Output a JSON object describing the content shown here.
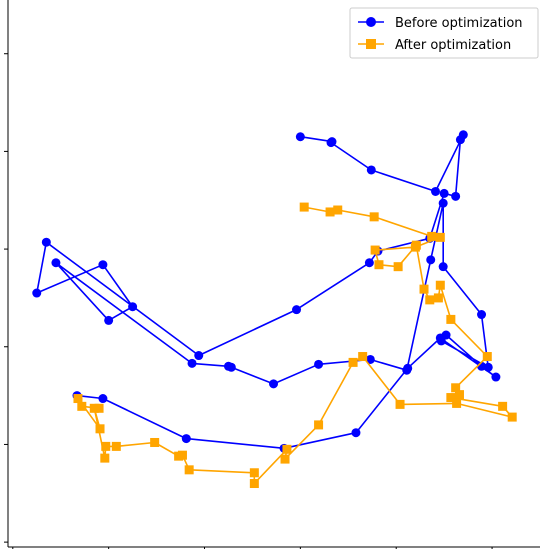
{
  "chart_data": {
    "type": "line",
    "title": "",
    "xlabel": "",
    "ylabel": "",
    "xlim": [
      -0.05,
      5.5
    ],
    "ylim": [
      -0.05,
      5.55
    ],
    "grid": false,
    "legend": {
      "placement": "top-right"
    },
    "series": [
      {
        "name": "Before optimization",
        "color": "#0000ff",
        "marker": "circle",
        "x": [
          3.0,
          3.33,
          3.32,
          3.74,
          4.41,
          4.7,
          4.67,
          4.62,
          4.5,
          4.35,
          3.81,
          3.72,
          2.96,
          1.94,
          0.35,
          0.25,
          0.94,
          1.25,
          1.0,
          0.45,
          1.87,
          2.25,
          2.28,
          2.72,
          3.19,
          3.73,
          4.11,
          4.36,
          4.49,
          4.49,
          4.89,
          4.96,
          4.47,
          4.52,
          4.89,
          5.04,
          4.46,
          4.12,
          3.58,
          2.83,
          1.81,
          0.94,
          0.67
        ],
        "y": [
          4.15,
          4.1,
          4.09,
          3.81,
          3.59,
          4.17,
          4.12,
          3.54,
          3.57,
          3.11,
          2.98,
          2.86,
          2.38,
          1.91,
          3.07,
          2.55,
          2.84,
          2.41,
          2.27,
          2.86,
          1.83,
          1.8,
          1.79,
          1.62,
          1.82,
          1.87,
          1.76,
          2.89,
          3.47,
          2.82,
          2.33,
          1.79,
          2.06,
          2.12,
          1.8,
          1.69,
          2.09,
          1.78,
          1.12,
          0.96,
          1.06,
          1.47,
          1.5
        ]
      },
      {
        "name": "After optimization",
        "color": "#ffa500",
        "marker": "square",
        "x": [
          3.04,
          3.31,
          3.39,
          3.77,
          4.37,
          4.46,
          4.2,
          3.78,
          3.82,
          4.02,
          4.21,
          4.29,
          4.35,
          4.44,
          4.46,
          4.57,
          4.95,
          4.62,
          4.66,
          4.57,
          5.11,
          5.21,
          4.63,
          4.04,
          3.65,
          3.55,
          3.19,
          2.84,
          2.86,
          2.52,
          2.52,
          1.84,
          1.77,
          1.73,
          1.48,
          1.08,
          0.97,
          0.96,
          0.85,
          0.91,
          0.68,
          0.72,
          0.9
        ],
        "y": [
          3.43,
          3.38,
          3.4,
          3.33,
          3.13,
          3.12,
          3.02,
          2.99,
          2.84,
          2.82,
          3.04,
          2.59,
          2.48,
          2.5,
          2.63,
          2.28,
          1.9,
          1.58,
          1.51,
          1.48,
          1.39,
          1.28,
          1.42,
          1.41,
          1.9,
          1.84,
          1.2,
          0.85,
          0.95,
          0.6,
          0.71,
          0.74,
          0.89,
          0.88,
          1.02,
          0.98,
          0.98,
          0.86,
          1.37,
          1.16,
          1.47,
          1.39,
          1.37
        ]
      }
    ]
  }
}
